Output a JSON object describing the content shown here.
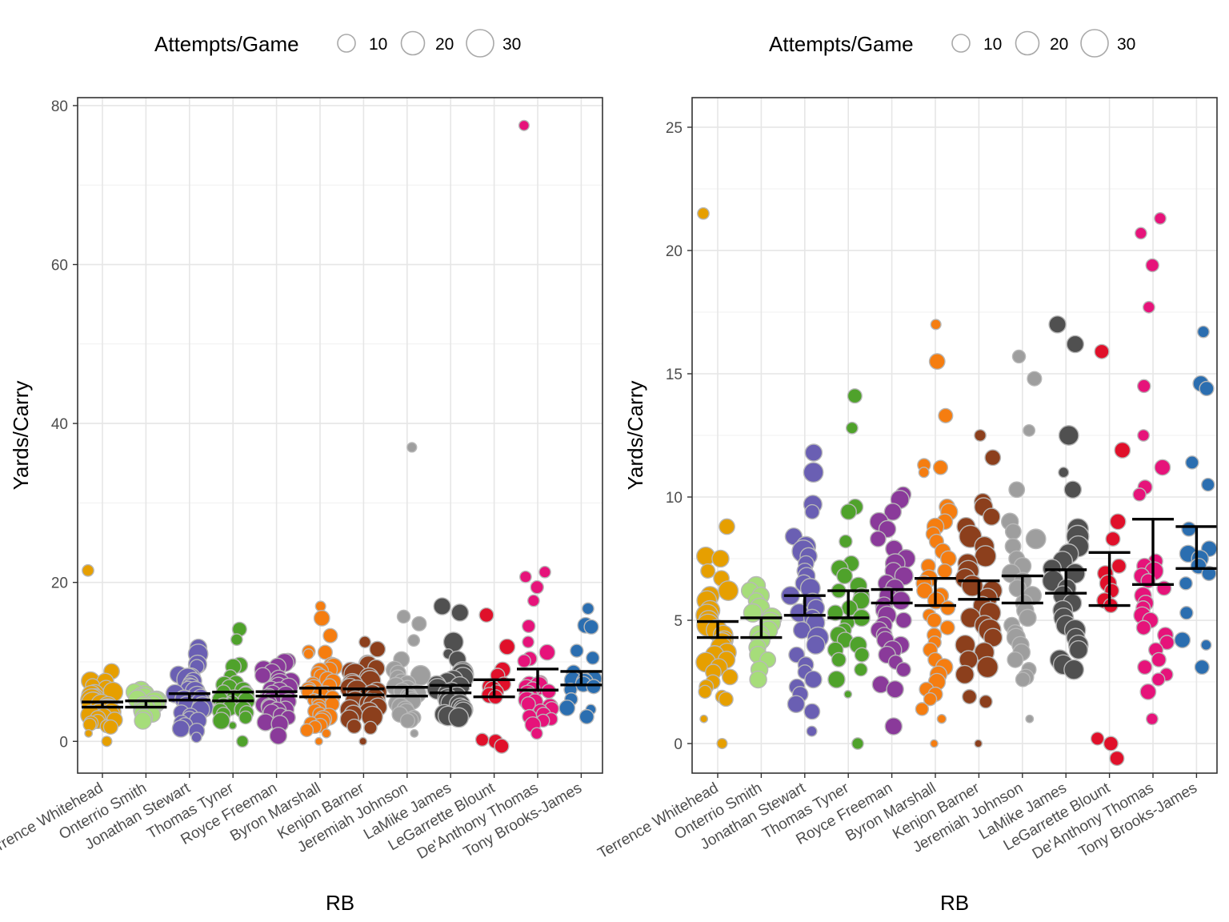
{
  "legend": {
    "title": "Attempts/Game",
    "labels": [
      "10",
      "20",
      "30"
    ],
    "values": [
      10,
      20,
      30
    ]
  },
  "chart_data": [
    {
      "type": "scatter",
      "variant": "jittered bubble scatter with per-category error bars",
      "xlabel": "RB",
      "ylabel": "Yards/Carry",
      "ylim": [
        -4,
        81
      ],
      "yticks": [
        0,
        20,
        40,
        60,
        80
      ],
      "grid": true,
      "legend_position": "top",
      "categories": [
        "Terrence Whitehead",
        "Onterrio Smith",
        "Jonathan Stewart",
        "Thomas Tyner",
        "Royce Freeman",
        "Byron Marshall",
        "Kenjon Barner",
        "Jeremiah Johnson",
        "LaMike James",
        "LeGarrette Blount",
        "De'Anthony Thomas",
        "Tony Brooks-James"
      ],
      "colors": [
        "#e69f00",
        "#a6dd7a",
        "#6a5fb3",
        "#4fa22b",
        "#8a3a9a",
        "#f57d10",
        "#8c3f1c",
        "#9e9e9e",
        "#505050",
        "#e0102a",
        "#e6137a",
        "#2b6eb0"
      ],
      "error_bars": [
        [
          4.3,
          4.95
        ],
        [
          4.3,
          5.1
        ],
        [
          5.2,
          6.0
        ],
        [
          5.1,
          6.2
        ],
        [
          5.7,
          6.25
        ],
        [
          5.6,
          6.7
        ],
        [
          5.85,
          6.6
        ],
        [
          5.7,
          6.8
        ],
        [
          6.1,
          7.05
        ],
        [
          5.6,
          7.75
        ],
        [
          6.45,
          9.1
        ],
        [
          7.1,
          8.8
        ]
      ],
      "outliers": [
        {
          "category": "De'Anthony Thomas",
          "y": 77.5
        },
        {
          "category": "Jeremiah Johnson",
          "y": 37
        }
      ]
    },
    {
      "type": "scatter",
      "variant": "jittered bubble scatter with per-category error bars (zoomed)",
      "xlabel": "RB",
      "ylabel": "Yards/Carry",
      "ylim": [
        -1.2,
        26.2
      ],
      "yticks": [
        0,
        5,
        10,
        15,
        20,
        25
      ],
      "grid": true,
      "legend_position": "top",
      "categories": [
        "Terrence Whitehead",
        "Onterrio Smith",
        "Jonathan Stewart",
        "Thomas Tyner",
        "Royce Freeman",
        "Byron Marshall",
        "Kenjon Barner",
        "Jeremiah Johnson",
        "LaMike James",
        "LeGarrette Blount",
        "De'Anthony Thomas",
        "Tony Brooks-James"
      ],
      "colors": [
        "#e69f00",
        "#a6dd7a",
        "#6a5fb3",
        "#4fa22b",
        "#8a3a9a",
        "#f57d10",
        "#8c3f1c",
        "#9e9e9e",
        "#505050",
        "#e0102a",
        "#e6137a",
        "#2b6eb0"
      ],
      "error_bars": [
        [
          4.3,
          4.95
        ],
        [
          4.3,
          5.1
        ],
        [
          5.2,
          6.0
        ],
        [
          5.1,
          6.2
        ],
        [
          5.7,
          6.25
        ],
        [
          5.6,
          6.7
        ],
        [
          5.85,
          6.6
        ],
        [
          5.7,
          6.8
        ],
        [
          6.1,
          7.05
        ],
        [
          5.6,
          7.75
        ],
        [
          6.45,
          9.1
        ],
        [
          7.1,
          8.8
        ]
      ]
    }
  ],
  "points": [
    [
      [
        21.5,
        10
      ],
      [
        8.8,
        16
      ],
      [
        7.6,
        20
      ],
      [
        7.5,
        18
      ],
      [
        7.0,
        14
      ],
      [
        6.7,
        16
      ],
      [
        6.2,
        22
      ],
      [
        6.0,
        20
      ],
      [
        5.8,
        22
      ],
      [
        5.4,
        22
      ],
      [
        5.2,
        26
      ],
      [
        5.0,
        22
      ],
      [
        4.8,
        26
      ],
      [
        4.6,
        24
      ],
      [
        4.4,
        22
      ],
      [
        4.2,
        20
      ],
      [
        4.1,
        22
      ],
      [
        3.9,
        24
      ],
      [
        3.7,
        20
      ],
      [
        3.6,
        20
      ],
      [
        3.4,
        18
      ],
      [
        3.3,
        22
      ],
      [
        3.1,
        18
      ],
      [
        2.9,
        16
      ],
      [
        2.7,
        16
      ],
      [
        2.5,
        14
      ],
      [
        2.3,
        14
      ],
      [
        2.1,
        12
      ],
      [
        1.9,
        12
      ],
      [
        1.8,
        14
      ],
      [
        1.0,
        4
      ],
      [
        0.0,
        8
      ]
    ],
    [
      [
        6.4,
        20
      ],
      [
        6.2,
        18
      ],
      [
        6.0,
        18
      ],
      [
        5.8,
        16
      ],
      [
        5.5,
        22
      ],
      [
        5.3,
        20
      ],
      [
        5.1,
        22
      ],
      [
        4.9,
        24
      ],
      [
        4.6,
        20
      ],
      [
        4.4,
        22
      ],
      [
        4.2,
        20
      ],
      [
        3.9,
        18
      ],
      [
        3.6,
        18
      ],
      [
        3.4,
        16
      ],
      [
        3.0,
        18
      ],
      [
        2.6,
        18
      ]
    ],
    [
      [
        11.8,
        18
      ],
      [
        11.0,
        22
      ],
      [
        9.7,
        20
      ],
      [
        9.4,
        14
      ],
      [
        8.4,
        18
      ],
      [
        8.0,
        22
      ],
      [
        7.8,
        26
      ],
      [
        7.6,
        18
      ],
      [
        7.3,
        16
      ],
      [
        7.0,
        16
      ],
      [
        6.8,
        18
      ],
      [
        6.5,
        18
      ],
      [
        6.3,
        22
      ],
      [
        6.0,
        20
      ],
      [
        5.7,
        22
      ],
      [
        5.5,
        18
      ],
      [
        5.3,
        20
      ],
      [
        5.1,
        18
      ],
      [
        4.9,
        20
      ],
      [
        4.6,
        18
      ],
      [
        4.3,
        24
      ],
      [
        4.0,
        20
      ],
      [
        3.6,
        16
      ],
      [
        3.2,
        16
      ],
      [
        2.9,
        14
      ],
      [
        2.6,
        18
      ],
      [
        2.3,
        16
      ],
      [
        2.0,
        16
      ],
      [
        1.6,
        18
      ],
      [
        1.3,
        16
      ],
      [
        0.5,
        8
      ]
    ],
    [
      [
        14.1,
        14
      ],
      [
        12.8,
        10
      ],
      [
        9.6,
        16
      ],
      [
        9.4,
        16
      ],
      [
        8.2,
        12
      ],
      [
        7.3,
        16
      ],
      [
        7.1,
        18
      ],
      [
        6.8,
        16
      ],
      [
        6.4,
        18
      ],
      [
        6.2,
        14
      ],
      [
        6.0,
        16
      ],
      [
        5.8,
        18
      ],
      [
        5.5,
        16
      ],
      [
        5.3,
        16
      ],
      [
        5.1,
        18
      ],
      [
        4.9,
        14
      ],
      [
        4.6,
        14
      ],
      [
        4.4,
        18
      ],
      [
        4.2,
        16
      ],
      [
        4.0,
        18
      ],
      [
        3.8,
        16
      ],
      [
        3.6,
        14
      ],
      [
        3.4,
        14
      ],
      [
        3.0,
        12
      ],
      [
        2.6,
        18
      ],
      [
        2.0,
        4
      ],
      [
        0.0,
        10
      ]
    ],
    [
      [
        10.1,
        16
      ],
      [
        9.9,
        20
      ],
      [
        9.4,
        18
      ],
      [
        9.0,
        20
      ],
      [
        8.7,
        18
      ],
      [
        8.3,
        16
      ],
      [
        7.9,
        18
      ],
      [
        7.5,
        20
      ],
      [
        7.3,
        22
      ],
      [
        7.0,
        18
      ],
      [
        6.8,
        20
      ],
      [
        6.5,
        18
      ],
      [
        6.3,
        20
      ],
      [
        6.0,
        18
      ],
      [
        5.8,
        20
      ],
      [
        5.6,
        18
      ],
      [
        5.4,
        18
      ],
      [
        5.2,
        20
      ],
      [
        5.0,
        16
      ],
      [
        4.8,
        18
      ],
      [
        4.6,
        18
      ],
      [
        4.4,
        16
      ],
      [
        4.2,
        18
      ],
      [
        4.0,
        18
      ],
      [
        3.8,
        20
      ],
      [
        3.6,
        18
      ],
      [
        3.3,
        14
      ],
      [
        3.0,
        14
      ],
      [
        2.4,
        18
      ],
      [
        2.2,
        18
      ],
      [
        0.7,
        18
      ]
    ],
    [
      [
        17.0,
        8
      ],
      [
        15.5,
        16
      ],
      [
        13.3,
        14
      ],
      [
        11.3,
        12
      ],
      [
        11.2,
        14
      ],
      [
        11.0,
        8
      ],
      [
        9.6,
        16
      ],
      [
        9.4,
        18
      ],
      [
        9.0,
        16
      ],
      [
        8.8,
        18
      ],
      [
        8.5,
        14
      ],
      [
        8.2,
        14
      ],
      [
        7.8,
        16
      ],
      [
        7.5,
        16
      ],
      [
        7.2,
        14
      ],
      [
        7.0,
        14
      ],
      [
        6.7,
        18
      ],
      [
        6.5,
        16
      ],
      [
        6.2,
        16
      ],
      [
        6.0,
        16
      ],
      [
        5.8,
        18
      ],
      [
        5.5,
        14
      ],
      [
        5.2,
        12
      ],
      [
        5.0,
        14
      ],
      [
        4.7,
        14
      ],
      [
        4.4,
        14
      ],
      [
        4.1,
        12
      ],
      [
        3.8,
        14
      ],
      [
        3.4,
        14
      ],
      [
        3.1,
        18
      ],
      [
        2.8,
        18
      ],
      [
        2.5,
        18
      ],
      [
        2.2,
        14
      ],
      [
        2.0,
        14
      ],
      [
        1.8,
        12
      ],
      [
        1.4,
        12
      ],
      [
        1.0,
        6
      ],
      [
        0.0,
        4
      ]
    ],
    [
      [
        12.5,
        10
      ],
      [
        11.6,
        16
      ],
      [
        9.8,
        18
      ],
      [
        9.6,
        20
      ],
      [
        9.2,
        18
      ],
      [
        8.8,
        20
      ],
      [
        8.4,
        26
      ],
      [
        8.0,
        22
      ],
      [
        7.6,
        24
      ],
      [
        7.3,
        22
      ],
      [
        7.0,
        24
      ],
      [
        6.7,
        22
      ],
      [
        6.4,
        24
      ],
      [
        6.2,
        22
      ],
      [
        5.9,
        22
      ],
      [
        5.6,
        20
      ],
      [
        5.3,
        24
      ],
      [
        5.1,
        22
      ],
      [
        4.8,
        22
      ],
      [
        4.6,
        26
      ],
      [
        4.3,
        20
      ],
      [
        4.0,
        22
      ],
      [
        3.7,
        22
      ],
      [
        3.4,
        20
      ],
      [
        3.1,
        24
      ],
      [
        2.8,
        20
      ],
      [
        1.9,
        14
      ],
      [
        1.7,
        12
      ],
      [
        0.0,
        4
      ]
    ],
    [
      [
        15.7,
        12
      ],
      [
        14.8,
        14
      ],
      [
        12.7,
        10
      ],
      [
        10.3,
        16
      ],
      [
        9.0,
        18
      ],
      [
        8.6,
        16
      ],
      [
        8.3,
        22
      ],
      [
        8.0,
        16
      ],
      [
        7.5,
        16
      ],
      [
        7.2,
        18
      ],
      [
        6.9,
        20
      ],
      [
        6.6,
        18
      ],
      [
        6.3,
        18
      ],
      [
        6.0,
        20
      ],
      [
        5.7,
        18
      ],
      [
        5.4,
        18
      ],
      [
        5.1,
        18
      ],
      [
        4.8,
        16
      ],
      [
        4.5,
        16
      ],
      [
        4.3,
        20
      ],
      [
        4.0,
        18
      ],
      [
        3.7,
        18
      ],
      [
        3.4,
        16
      ],
      [
        3.0,
        14
      ],
      [
        2.7,
        16
      ],
      [
        2.6,
        14
      ],
      [
        1.0,
        4
      ]
    ],
    [
      [
        17.0,
        18
      ],
      [
        16.2,
        18
      ],
      [
        12.5,
        22
      ],
      [
        11.0,
        8
      ],
      [
        10.3,
        18
      ],
      [
        8.7,
        24
      ],
      [
        8.4,
        26
      ],
      [
        8.0,
        24
      ],
      [
        7.7,
        22
      ],
      [
        7.4,
        22
      ],
      [
        7.1,
        20
      ],
      [
        6.9,
        22
      ],
      [
        6.6,
        24
      ],
      [
        6.3,
        20
      ],
      [
        6.0,
        22
      ],
      [
        5.7,
        20
      ],
      [
        5.4,
        22
      ],
      [
        5.1,
        22
      ],
      [
        4.8,
        22
      ],
      [
        4.6,
        24
      ],
      [
        4.3,
        20
      ],
      [
        4.0,
        22
      ],
      [
        3.8,
        20
      ],
      [
        3.4,
        22
      ],
      [
        3.2,
        22
      ],
      [
        3.0,
        22
      ]
    ],
    [
      [
        15.9,
        14
      ],
      [
        11.9,
        16
      ],
      [
        9.0,
        16
      ],
      [
        8.3,
        14
      ],
      [
        7.2,
        14
      ],
      [
        6.9,
        16
      ],
      [
        6.5,
        18
      ],
      [
        6.2,
        14
      ],
      [
        5.8,
        16
      ],
      [
        5.6,
        14
      ],
      [
        0.2,
        12
      ],
      [
        0.0,
        14
      ],
      [
        -0.6,
        14
      ]
    ],
    [
      [
        77.5,
        8
      ],
      [
        21.3,
        10
      ],
      [
        20.7,
        10
      ],
      [
        19.4,
        12
      ],
      [
        17.7,
        10
      ],
      [
        14.5,
        12
      ],
      [
        12.5,
        10
      ],
      [
        11.2,
        16
      ],
      [
        10.4,
        14
      ],
      [
        10.1,
        12
      ],
      [
        7.4,
        14
      ],
      [
        7.2,
        16
      ],
      [
        7.0,
        20
      ],
      [
        6.8,
        16
      ],
      [
        6.6,
        14
      ],
      [
        6.3,
        14
      ],
      [
        6.0,
        18
      ],
      [
        5.7,
        16
      ],
      [
        5.5,
        14
      ],
      [
        5.2,
        18
      ],
      [
        5.0,
        16
      ],
      [
        4.7,
        14
      ],
      [
        4.4,
        16
      ],
      [
        4.1,
        14
      ],
      [
        3.8,
        14
      ],
      [
        3.4,
        14
      ],
      [
        3.1,
        14
      ],
      [
        2.8,
        12
      ],
      [
        2.6,
        12
      ],
      [
        2.1,
        16
      ],
      [
        1.0,
        10
      ]
    ],
    [
      [
        16.7,
        10
      ],
      [
        14.6,
        16
      ],
      [
        14.4,
        14
      ],
      [
        11.4,
        12
      ],
      [
        10.5,
        12
      ],
      [
        8.7,
        14
      ],
      [
        7.9,
        16
      ],
      [
        7.7,
        18
      ],
      [
        7.5,
        18
      ],
      [
        7.2,
        16
      ],
      [
        6.9,
        14
      ],
      [
        6.5,
        12
      ],
      [
        5.3,
        12
      ],
      [
        4.2,
        16
      ],
      [
        4.0,
        8
      ],
      [
        3.1,
        14
      ]
    ]
  ],
  "left_extra_points": [
    [
      37,
      9,
      7
    ]
  ]
}
